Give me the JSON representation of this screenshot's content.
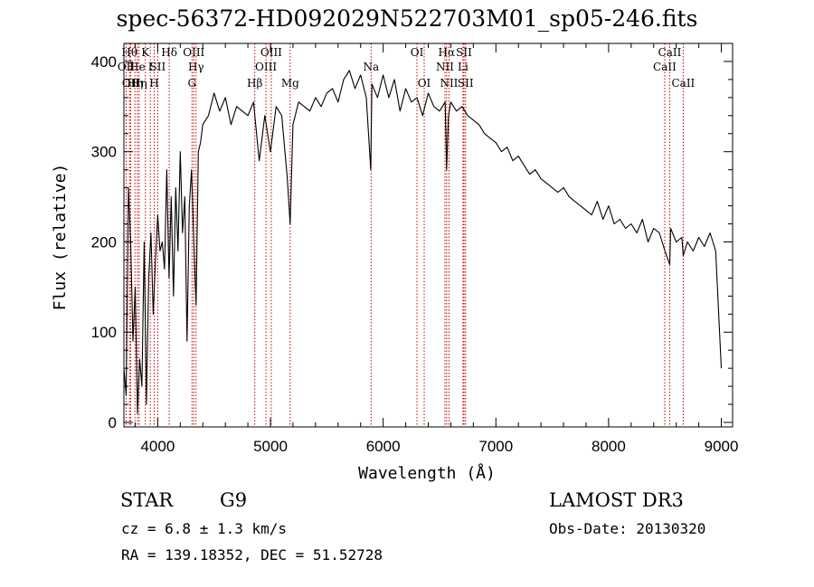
{
  "chart_data": {
    "type": "line",
    "title": "spec-56372-HD092029N522703M01_sp05-246.fits",
    "xlabel": "Wavelength (Å)",
    "ylabel": "Flux (relative)",
    "xlim": [
      3700,
      9100
    ],
    "ylim": [
      -5,
      420
    ],
    "xticks": [
      4000,
      5000,
      6000,
      7000,
      8000,
      9000
    ],
    "yticks": [
      0,
      100,
      200,
      300,
      400
    ],
    "grid": false,
    "series": [
      {
        "x": [
          3700,
          3720,
          3740,
          3760,
          3780,
          3800,
          3820,
          3840,
          3860,
          3880,
          3900,
          3920,
          3940,
          3960,
          3980,
          4000,
          4020,
          4040,
          4060,
          4080,
          4100,
          4120,
          4140,
          4160,
          4180,
          4200,
          4220,
          4240,
          4260,
          4280,
          4300,
          4320,
          4340,
          4360,
          4380,
          4400,
          4450,
          4500,
          4550,
          4600,
          4650,
          4700,
          4750,
          4800,
          4850,
          4900,
          4950,
          5000,
          5050,
          5100,
          5150,
          5175,
          5200,
          5250,
          5300,
          5350,
          5400,
          5450,
          5500,
          5550,
          5600,
          5650,
          5700,
          5750,
          5800,
          5850,
          5890,
          5900,
          5950,
          6000,
          6050,
          6100,
          6150,
          6200,
          6250,
          6300,
          6350,
          6400,
          6450,
          6500,
          6550,
          6563,
          6580,
          6600,
          6650,
          6700,
          6750,
          6800,
          6850,
          6900,
          6950,
          7000,
          7050,
          7100,
          7150,
          7200,
          7250,
          7300,
          7350,
          7400,
          7450,
          7500,
          7550,
          7600,
          7650,
          7700,
          7750,
          7800,
          7850,
          7900,
          7950,
          8000,
          8050,
          8100,
          8150,
          8200,
          8250,
          8300,
          8350,
          8400,
          8450,
          8500,
          8542,
          8550,
          8600,
          8650,
          8662,
          8700,
          8750,
          8800,
          8850,
          8900,
          8950,
          9000
        ],
        "values": [
          60,
          30,
          260,
          200,
          90,
          150,
          10,
          70,
          40,
          200,
          20,
          160,
          210,
          120,
          180,
          230,
          190,
          200,
          170,
          280,
          160,
          250,
          140,
          260,
          190,
          300,
          210,
          250,
          90,
          240,
          280,
          200,
          130,
          300,
          310,
          330,
          340,
          365,
          345,
          360,
          330,
          350,
          345,
          340,
          355,
          290,
          340,
          300,
          350,
          340,
          270,
          220,
          330,
          355,
          350,
          345,
          360,
          350,
          365,
          370,
          355,
          380,
          390,
          370,
          385,
          360,
          280,
          375,
          360,
          385,
          360,
          380,
          345,
          370,
          355,
          360,
          340,
          365,
          350,
          345,
          355,
          280,
          340,
          355,
          345,
          350,
          340,
          335,
          330,
          320,
          315,
          310,
          300,
          305,
          290,
          295,
          285,
          275,
          280,
          270,
          265,
          260,
          255,
          260,
          250,
          245,
          240,
          235,
          230,
          245,
          225,
          240,
          220,
          225,
          215,
          220,
          210,
          225,
          200,
          215,
          210,
          190,
          175,
          215,
          200,
          205,
          185,
          200,
          190,
          205,
          195,
          210,
          190,
          60
        ]
      }
    ],
    "lines": [
      {
        "x": 3720,
        "label": "OII",
        "row": 2
      },
      {
        "x": 3750,
        "label": "Hθ",
        "row": 1
      },
      {
        "x": 3760,
        "label": "OII",
        "row": 3
      },
      {
        "x": 3798,
        "label": "Hη",
        "row": 3
      },
      {
        "x": 3820,
        "label": "He",
        "row": 2
      },
      {
        "x": 3835,
        "label": "Hη",
        "row": 3
      },
      {
        "x": 3890,
        "label": "K",
        "row": 1
      },
      {
        "x": 3934,
        "label": "I",
        "row": 2
      },
      {
        "x": 3969,
        "label": "H",
        "row": 3
      },
      {
        "x": 4000,
        "label": "SII",
        "row": 2
      },
      {
        "x": 4102,
        "label": "Hδ",
        "row": 1
      },
      {
        "x": 4304,
        "label": "G",
        "row": 3
      },
      {
        "x": 4320,
        "label": "OIII",
        "row": 1
      },
      {
        "x": 4340,
        "label": "Hγ",
        "row": 2
      },
      {
        "x": 4861,
        "label": "Hβ",
        "row": 3
      },
      {
        "x": 4960,
        "label": "OIII",
        "row": 2
      },
      {
        "x": 5007,
        "label": "OIII",
        "row": 1
      },
      {
        "x": 5175,
        "label": "Mg",
        "row": 3
      },
      {
        "x": 5893,
        "label": "Na",
        "row": 2
      },
      {
        "x": 6300,
        "label": "OI",
        "row": 1
      },
      {
        "x": 6364,
        "label": "OI",
        "row": 3
      },
      {
        "x": 6548,
        "label": "NII",
        "row": 2
      },
      {
        "x": 6563,
        "label": "Hα",
        "row": 1
      },
      {
        "x": 6584,
        "label": "NII",
        "row": 3
      },
      {
        "x": 6708,
        "label": "Li",
        "row": 2
      },
      {
        "x": 6717,
        "label": "SII",
        "row": 1
      },
      {
        "x": 6731,
        "label": "SII",
        "row": 3
      },
      {
        "x": 8498,
        "label": "CaII",
        "row": 2
      },
      {
        "x": 8542,
        "label": "CaII",
        "row": 1
      },
      {
        "x": 8662,
        "label": "CaII",
        "row": 3
      }
    ]
  },
  "info": {
    "class": "STAR",
    "subclass": "G9",
    "survey": "LAMOST DR3",
    "cz": "cz = 6.8 ± 1.3 km/s",
    "obs_date": "Obs-Date: 20130320",
    "radec": "RA = 139.18352, DEC =  51.52728"
  },
  "colors": {
    "spectrum": "#000000",
    "line_markers": "#cc0000",
    "background": "#ffffff"
  }
}
